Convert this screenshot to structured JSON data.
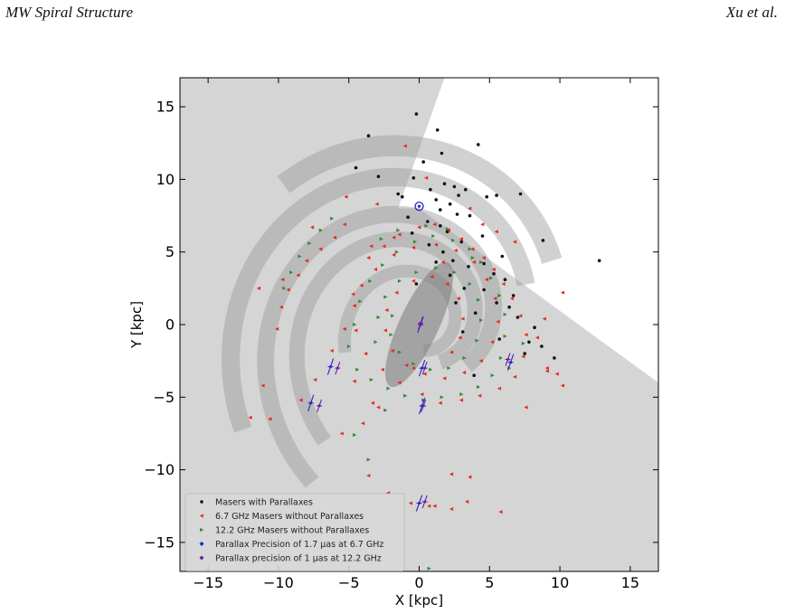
{
  "header": {
    "left": "MW Spiral Structure",
    "right": "Xu et al."
  },
  "chart_data": {
    "type": "scatter",
    "xlabel": "X [kpc]",
    "ylabel": "Y [kpc]",
    "xlim": [
      -17,
      17
    ],
    "ylim": [
      -17,
      17
    ],
    "xticks": [
      -15,
      -10,
      -5,
      0,
      5,
      10,
      15
    ],
    "yticks": [
      -15,
      -10,
      -5,
      0,
      5,
      10,
      15
    ],
    "grid": false,
    "legend_position": "lower-left",
    "colors": {
      "masers_parallax": "#111111",
      "masers_67": "#e8281f",
      "masers_122": "#2e8b2e",
      "precision_67": "#2323c8",
      "precision_122": "#6a1fa0",
      "sun_marker": "#2323c8",
      "shade": "#d5d5d5"
    },
    "sun": {
      "x": 0,
      "y": 8.15
    },
    "series": [
      {
        "name": "Masers with Parallaxes",
        "marker": "circle",
        "points": [
          [
            -0.2,
            14.5
          ],
          [
            -3.6,
            13.0
          ],
          [
            4.2,
            12.4
          ],
          [
            -4.5,
            10.8
          ],
          [
            1.3,
            13.4
          ],
          [
            1.6,
            11.8
          ],
          [
            0.3,
            11.2
          ],
          [
            -0.4,
            10.1
          ],
          [
            1.8,
            9.7
          ],
          [
            2.5,
            9.5
          ],
          [
            3.3,
            9.3
          ],
          [
            4.8,
            8.8
          ],
          [
            5.5,
            8.9
          ],
          [
            7.2,
            9.0
          ],
          [
            8.8,
            5.8
          ],
          [
            12.8,
            4.4
          ],
          [
            1.2,
            8.6
          ],
          [
            2.2,
            8.3
          ],
          [
            2.7,
            7.6
          ],
          [
            1.5,
            7.9
          ],
          [
            0.6,
            7.1
          ],
          [
            -0.8,
            7.4
          ],
          [
            -1.5,
            9.0
          ],
          [
            3.6,
            7.5
          ],
          [
            4.5,
            6.1
          ],
          [
            2.0,
            6.4
          ],
          [
            3.0,
            5.7
          ],
          [
            1.7,
            5.0
          ],
          [
            2.4,
            4.4
          ],
          [
            3.5,
            4.0
          ],
          [
            4.6,
            4.2
          ],
          [
            5.3,
            3.5
          ],
          [
            6.1,
            3.1
          ],
          [
            2.2,
            3.4
          ],
          [
            1.2,
            4.3
          ],
          [
            0.7,
            5.5
          ],
          [
            -0.5,
            6.3
          ],
          [
            3.2,
            2.5
          ],
          [
            4.6,
            2.4
          ],
          [
            5.5,
            1.5
          ],
          [
            6.4,
            1.2
          ],
          [
            7.0,
            0.5
          ],
          [
            8.2,
            -0.2
          ],
          [
            8.7,
            -1.5
          ],
          [
            7.5,
            -2.0
          ],
          [
            9.6,
            -2.3
          ],
          [
            5.7,
            -1.0
          ],
          [
            4.0,
            0.8
          ],
          [
            3.1,
            -0.5
          ],
          [
            2.6,
            1.5
          ],
          [
            -0.2,
            2.8
          ],
          [
            1.5,
            6.8
          ],
          [
            2.8,
            8.9
          ],
          [
            -2.9,
            10.2
          ],
          [
            0.8,
            9.3
          ],
          [
            -1.2,
            8.8
          ],
          [
            5.9,
            4.7
          ],
          [
            6.7,
            2.0
          ],
          [
            7.8,
            -1.2
          ],
          [
            3.9,
            -3.5
          ]
        ]
      },
      {
        "name": "6.7 GHz Masers without Parallaxes",
        "marker": "triangle-left",
        "points": [
          [
            -1.0,
            12.3
          ],
          [
            -3.0,
            8.3
          ],
          [
            -5.3,
            6.9
          ],
          [
            -6.0,
            6.0
          ],
          [
            -7.0,
            5.2
          ],
          [
            -8.0,
            4.4
          ],
          [
            -8.6,
            3.4
          ],
          [
            -9.3,
            2.4
          ],
          [
            -9.8,
            1.2
          ],
          [
            -10.1,
            -0.3
          ],
          [
            -11.1,
            -4.2
          ],
          [
            -10.6,
            -6.5
          ],
          [
            -8.4,
            -5.2
          ],
          [
            -7.4,
            -3.8
          ],
          [
            -6.2,
            -1.8
          ],
          [
            -5.3,
            -0.3
          ],
          [
            -4.7,
            2.1
          ],
          [
            -3.6,
            4.6
          ],
          [
            -2.5,
            5.4
          ],
          [
            -1.4,
            6.2
          ],
          [
            0.0,
            6.7
          ],
          [
            1.1,
            6.9
          ],
          [
            2.1,
            6.5
          ],
          [
            3.0,
            5.9
          ],
          [
            3.8,
            5.2
          ],
          [
            4.6,
            4.6
          ],
          [
            5.3,
            3.8
          ],
          [
            6.0,
            2.8
          ],
          [
            6.6,
            1.8
          ],
          [
            7.2,
            0.6
          ],
          [
            7.6,
            -0.7
          ],
          [
            7.4,
            -2.2
          ],
          [
            6.8,
            -3.6
          ],
          [
            5.7,
            -4.4
          ],
          [
            4.3,
            -4.9
          ],
          [
            3.0,
            -5.2
          ],
          [
            1.5,
            -5.4
          ],
          [
            0.2,
            -4.8
          ],
          [
            -1.4,
            -4.0
          ],
          [
            -2.6,
            -3.1
          ],
          [
            -3.8,
            -2.0
          ],
          [
            -4.5,
            -0.4
          ],
          [
            -4.6,
            1.3
          ],
          [
            -4.1,
            2.7
          ],
          [
            -3.1,
            3.8
          ],
          [
            -1.8,
            4.8
          ],
          [
            -0.4,
            5.3
          ],
          [
            1.2,
            5.5
          ],
          [
            2.6,
            5.1
          ],
          [
            3.9,
            4.3
          ],
          [
            4.8,
            3.1
          ],
          [
            5.4,
            1.8
          ],
          [
            5.6,
            0.2
          ],
          [
            5.2,
            -1.2
          ],
          [
            4.4,
            -2.5
          ],
          [
            3.2,
            -3.3
          ],
          [
            1.8,
            -3.7
          ],
          [
            0.4,
            -3.4
          ],
          [
            -0.9,
            -2.8
          ],
          [
            -1.9,
            -1.8
          ],
          [
            -2.4,
            -0.4
          ],
          [
            -2.3,
            1.0
          ],
          [
            -1.6,
            2.2
          ],
          [
            -0.4,
            3.0
          ],
          [
            0.9,
            3.3
          ],
          [
            2.0,
            2.8
          ],
          [
            2.8,
            1.8
          ],
          [
            3.1,
            0.4
          ],
          [
            2.9,
            -0.9
          ],
          [
            -2.9,
            -5.7
          ],
          [
            -4.0,
            -6.8
          ],
          [
            -5.5,
            -7.5
          ],
          [
            -3.6,
            -10.4
          ],
          [
            -2.2,
            -11.6
          ],
          [
            -0.6,
            -12.3
          ],
          [
            0.7,
            -12.5
          ],
          [
            2.3,
            -12.7
          ],
          [
            3.4,
            -12.2
          ],
          [
            3.6,
            -10.5
          ],
          [
            5.8,
            -12.9
          ],
          [
            7.6,
            -5.7
          ],
          [
            9.1,
            -3.2
          ],
          [
            10.2,
            -4.2
          ],
          [
            9.1,
            -3.0
          ],
          [
            10.2,
            2.2
          ],
          [
            8.4,
            -0.9
          ],
          [
            5.5,
            6.4
          ],
          [
            6.8,
            5.7
          ],
          [
            -5.2,
            8.8
          ],
          [
            -7.6,
            6.7
          ],
          [
            -11.4,
            2.5
          ],
          [
            -9.7,
            3.1
          ],
          [
            -12.0,
            -6.4
          ],
          [
            -4.6,
            -3.9
          ],
          [
            -3.3,
            -5.4
          ],
          [
            -0.4,
            -3.0
          ],
          [
            2.3,
            -1.9
          ],
          [
            4.5,
            6.9
          ],
          [
            3.6,
            8.0
          ],
          [
            0.5,
            10.1
          ],
          [
            -1.8,
            6.0
          ],
          [
            -3.4,
            5.4
          ],
          [
            1.7,
            4.3
          ],
          [
            2.3,
            -10.3
          ],
          [
            1.1,
            -12.5
          ],
          [
            9.8,
            -3.4
          ],
          [
            8.9,
            0.4
          ]
        ]
      },
      {
        "name": "12.2 GHz Masers without Parallaxes",
        "marker": "triangle-right",
        "points": [
          [
            -6.2,
            7.3
          ],
          [
            -7.0,
            6.5
          ],
          [
            -7.8,
            5.6
          ],
          [
            -8.5,
            4.7
          ],
          [
            -9.1,
            3.6
          ],
          [
            -9.6,
            2.5
          ],
          [
            -5.0,
            -1.5
          ],
          [
            -4.6,
            0.0
          ],
          [
            -4.2,
            1.6
          ],
          [
            -3.5,
            3.0
          ],
          [
            -2.6,
            4.1
          ],
          [
            -1.6,
            5.0
          ],
          [
            -0.3,
            5.7
          ],
          [
            1.0,
            6.1
          ],
          [
            2.4,
            5.8
          ],
          [
            3.6,
            5.2
          ],
          [
            4.4,
            4.3
          ],
          [
            5.1,
            3.2
          ],
          [
            5.7,
            2.0
          ],
          [
            6.1,
            0.7
          ],
          [
            6.1,
            -0.8
          ],
          [
            5.8,
            -2.3
          ],
          [
            5.2,
            -3.5
          ],
          [
            4.2,
            -4.3
          ],
          [
            3.0,
            -4.8
          ],
          [
            1.6,
            -5.0
          ],
          [
            0.3,
            -5.2
          ],
          [
            -1.0,
            -4.9
          ],
          [
            -2.2,
            -4.4
          ],
          [
            -3.4,
            -3.8
          ],
          [
            -4.4,
            -3.1
          ],
          [
            -3.1,
            -1.2
          ],
          [
            -2.9,
            0.5
          ],
          [
            -2.4,
            1.9
          ],
          [
            -1.4,
            3.0
          ],
          [
            -0.2,
            3.6
          ],
          [
            1.2,
            3.9
          ],
          [
            2.5,
            3.6
          ],
          [
            3.6,
            2.8
          ],
          [
            4.2,
            1.7
          ],
          [
            4.4,
            0.3
          ],
          [
            4.1,
            -1.1
          ],
          [
            3.2,
            -2.3
          ],
          [
            2.1,
            -3.0
          ],
          [
            0.8,
            -3.1
          ],
          [
            -0.4,
            -2.7
          ],
          [
            -1.4,
            -1.9
          ],
          [
            -2.0,
            -0.7
          ],
          [
            -1.9,
            0.6
          ],
          [
            -3.6,
            -9.3
          ],
          [
            -4.6,
            -7.6
          ],
          [
            -2.4,
            -5.9
          ],
          [
            0.7,
            -16.8
          ],
          [
            -1.5,
            6.5
          ],
          [
            0.5,
            6.8
          ],
          [
            2.0,
            6.6
          ],
          [
            -2.7,
            5.9
          ],
          [
            3.8,
            4.6
          ],
          [
            6.4,
            -3.0
          ],
          [
            7.4,
            -1.3
          ]
        ]
      },
      {
        "name": "Parallax Precision of 1.7 μas at 6.7 GHz",
        "marker": "error-bar",
        "points": [
          [
            -7.7,
            -5.4
          ],
          [
            -6.3,
            -2.9
          ],
          [
            0.0,
            -12.3
          ],
          [
            0.2,
            -5.6
          ],
          [
            0.2,
            -3.0
          ],
          [
            6.5,
            -2.6
          ],
          [
            0.1,
            0.0
          ]
        ]
      },
      {
        "name": "Parallax precision of 1 μas at 12.2 GHz",
        "marker": "error-bar",
        "points": [
          [
            -7.1,
            -5.6
          ],
          [
            -5.8,
            -3.0
          ],
          [
            0.4,
            -12.2
          ],
          [
            0.3,
            -5.6
          ],
          [
            0.4,
            -3.0
          ],
          [
            6.3,
            -2.4
          ],
          [
            0.1,
            0.1
          ]
        ]
      }
    ]
  }
}
